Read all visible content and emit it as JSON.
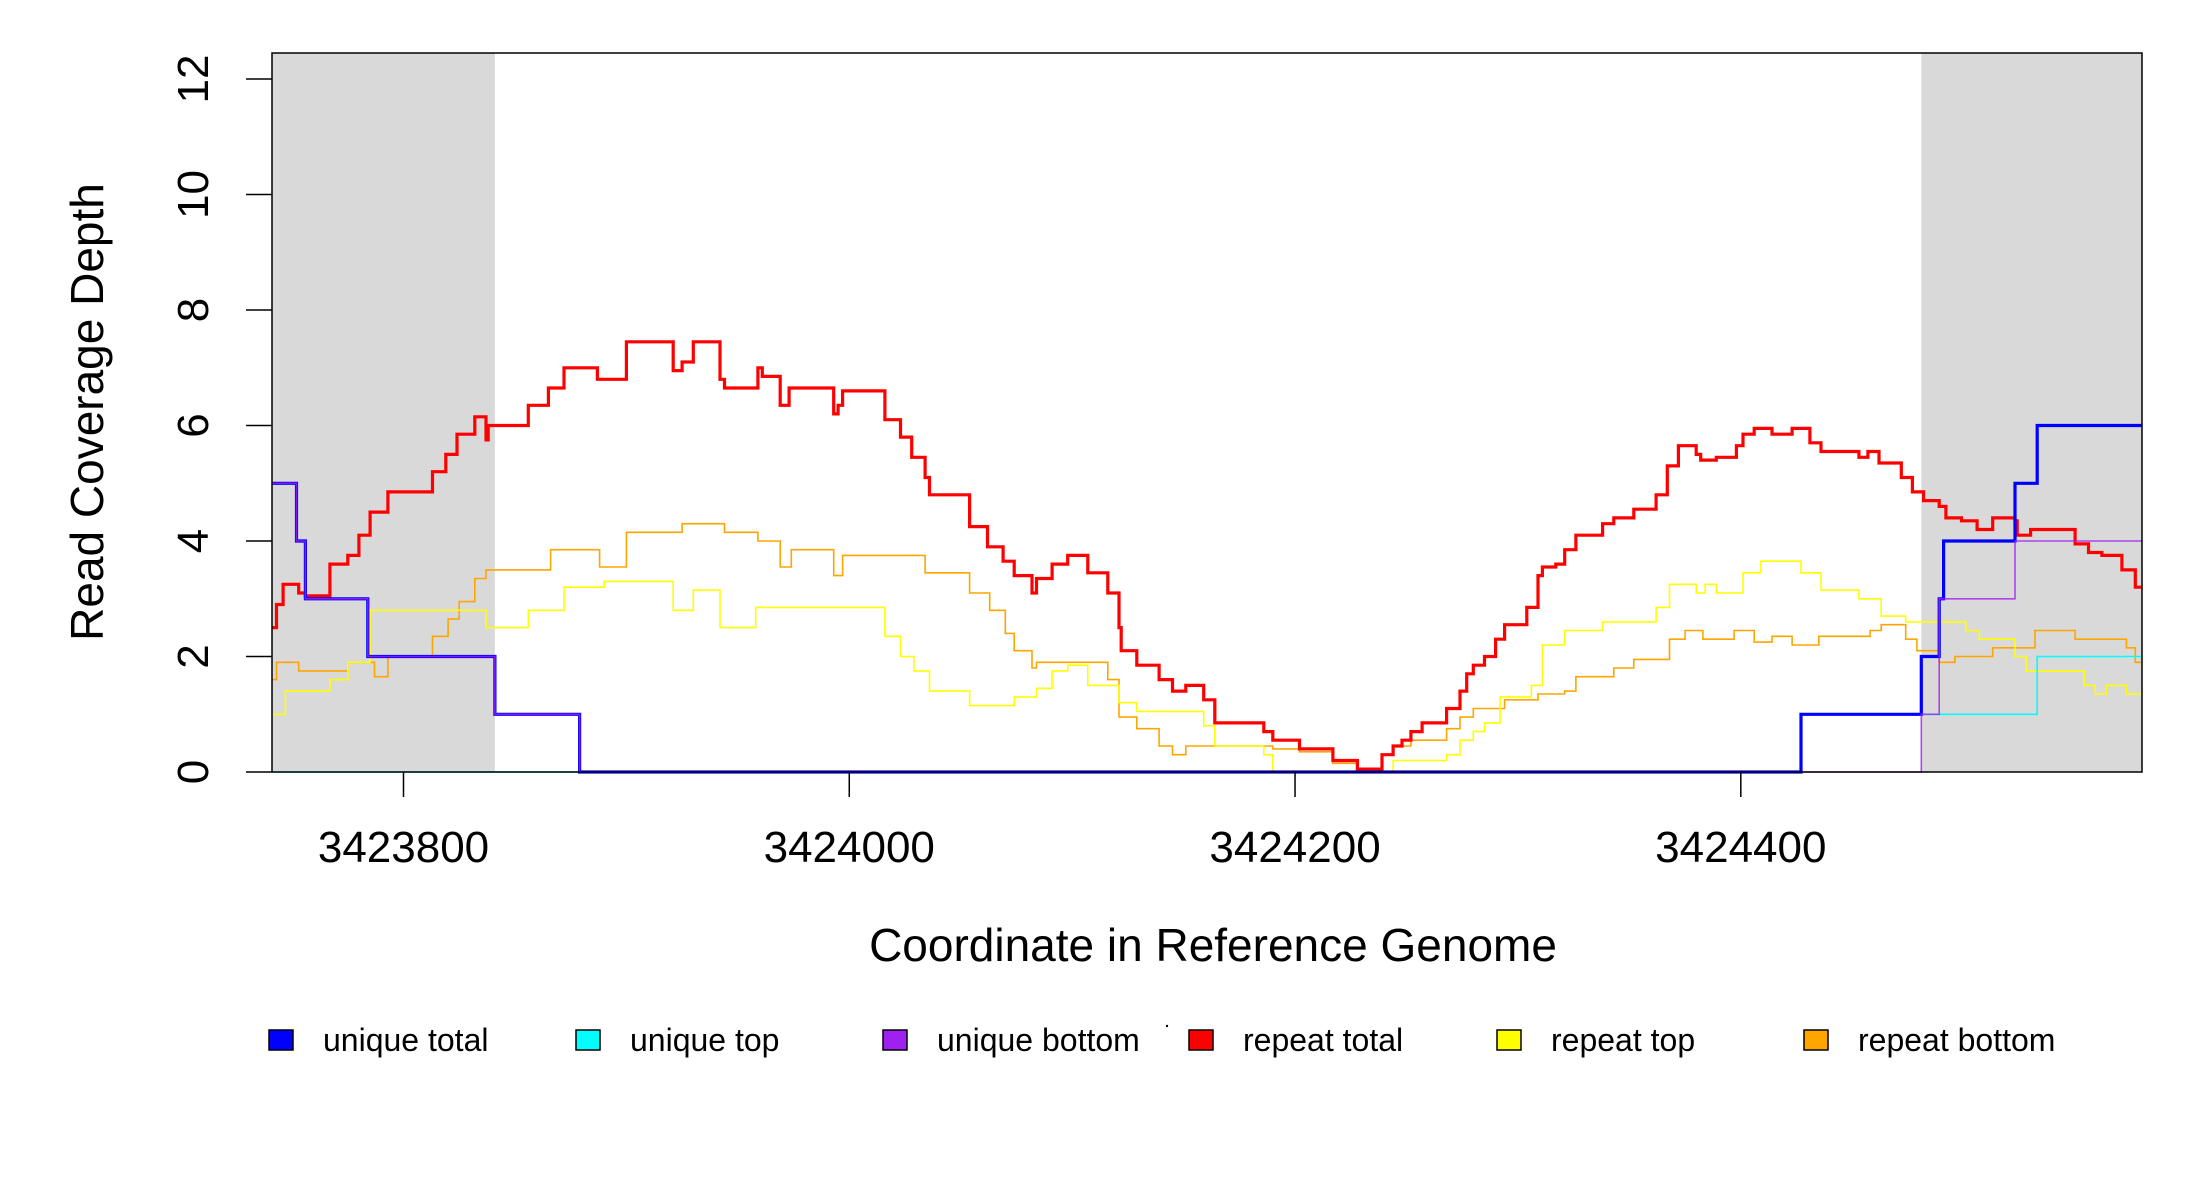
{
  "chart_data": {
    "type": "line",
    "step": true,
    "title": "",
    "xlabel": "Coordinate in Reference Genome",
    "ylabel": "Read Coverage Depth",
    "xlim": [
      3423741,
      3424580
    ],
    "ylim": [
      0,
      12
    ],
    "x_ticks": [
      3423800,
      3424000,
      3424200,
      3424400
    ],
    "x_tick_labels": [
      "3423800",
      "3424000",
      "3424200",
      "3424400"
    ],
    "y_ticks": [
      0,
      2,
      4,
      6,
      8,
      10,
      12
    ],
    "y_tick_labels": [
      "0",
      "2",
      "4",
      "6",
      "8",
      "10",
      "12"
    ],
    "grid": false,
    "legend_placement": "bottom",
    "shaded_regions": [
      {
        "from": 3423741,
        "to": 3423841,
        "color": "#d9d9d9"
      },
      {
        "from": 3424481,
        "to": 3424580,
        "color": "#d9d9d9"
      }
    ],
    "series": [
      {
        "name": "repeat bottom",
        "color": "#ffa500",
        "width": 1.6,
        "points": [
          [
            3423741,
            1.6
          ],
          [
            3423743,
            1.9
          ],
          [
            3423753,
            1.75
          ],
          [
            3423775,
            1.9
          ],
          [
            3423787,
            1.65
          ],
          [
            3423793,
            2.0
          ],
          [
            3423813,
            2.35
          ],
          [
            3423820,
            2.65
          ],
          [
            3423825,
            2.95
          ],
          [
            3423832,
            3.35
          ],
          [
            3423837,
            3.5
          ],
          [
            3423866,
            3.85
          ],
          [
            3423888,
            3.55
          ],
          [
            3423900,
            4.15
          ],
          [
            3423925,
            4.3
          ],
          [
            3423944,
            4.15
          ],
          [
            3423959,
            4.0
          ],
          [
            3423969,
            3.55
          ],
          [
            3423974,
            3.85
          ],
          [
            3423993,
            3.4
          ],
          [
            3423997,
            3.75
          ],
          [
            3424034,
            3.45
          ],
          [
            3424054,
            3.1
          ],
          [
            3424063,
            2.8
          ],
          [
            3424070,
            2.4
          ],
          [
            3424074,
            2.1
          ],
          [
            3424082,
            1.8
          ],
          [
            3424084,
            1.9
          ],
          [
            3424116,
            1.6
          ],
          [
            3424121,
            0.95
          ],
          [
            3424129,
            0.75
          ],
          [
            3424139,
            0.45
          ],
          [
            3424145,
            0.3
          ],
          [
            3424151,
            0.45
          ],
          [
            3424190,
            0.4
          ],
          [
            3424202,
            0.35
          ],
          [
            3424217,
            0.15
          ],
          [
            3424228,
            0.0
          ],
          [
            3424239,
            0.3
          ],
          [
            3424244,
            0.45
          ],
          [
            3424252,
            0.55
          ],
          [
            3424268,
            0.75
          ],
          [
            3424274,
            0.95
          ],
          [
            3424280,
            1.1
          ],
          [
            3424294,
            1.25
          ],
          [
            3424309,
            1.35
          ],
          [
            3424321,
            1.4
          ],
          [
            3424326,
            1.65
          ],
          [
            3424343,
            1.8
          ],
          [
            3424352,
            1.95
          ],
          [
            3424368,
            2.3
          ],
          [
            3424375,
            2.45
          ],
          [
            3424383,
            2.3
          ],
          [
            3424397,
            2.45
          ],
          [
            3424406,
            2.25
          ],
          [
            3424414,
            2.35
          ],
          [
            3424423,
            2.2
          ],
          [
            3424435,
            2.35
          ],
          [
            3424458,
            2.45
          ],
          [
            3424463,
            2.55
          ],
          [
            3424474,
            2.3
          ],
          [
            3424479,
            2.1
          ],
          [
            3424489,
            1.9
          ],
          [
            3424496,
            2.0
          ],
          [
            3424513,
            2.15
          ],
          [
            3424532,
            2.45
          ],
          [
            3424550,
            2.3
          ],
          [
            3424573,
            2.15
          ],
          [
            3424577,
            1.9
          ],
          [
            3424580,
            1.9
          ]
        ]
      },
      {
        "name": "repeat top",
        "color": "#ffff00",
        "width": 1.6,
        "points": [
          [
            3423741,
            1.0
          ],
          [
            3423747,
            1.4
          ],
          [
            3423767,
            1.6
          ],
          [
            3423775,
            1.9
          ],
          [
            3423785,
            2.8
          ],
          [
            3423837,
            2.5
          ],
          [
            3423856,
            2.8
          ],
          [
            3423872,
            3.2
          ],
          [
            3423890,
            3.3
          ],
          [
            3423921,
            2.8
          ],
          [
            3423930,
            3.15
          ],
          [
            3423942,
            2.5
          ],
          [
            3423958,
            2.85
          ],
          [
            3424016,
            2.35
          ],
          [
            3424023,
            2.0
          ],
          [
            3424029,
            1.75
          ],
          [
            3424036,
            1.4
          ],
          [
            3424054,
            1.15
          ],
          [
            3424074,
            1.3
          ],
          [
            3424084,
            1.45
          ],
          [
            3424091,
            1.75
          ],
          [
            3424098,
            1.85
          ],
          [
            3424107,
            1.5
          ],
          [
            3424121,
            1.2
          ],
          [
            3424129,
            1.05
          ],
          [
            3424159,
            0.8
          ],
          [
            3424164,
            0.45
          ],
          [
            3424186,
            0.3
          ],
          [
            3424190,
            0.0
          ],
          [
            3424244,
            0.2
          ],
          [
            3424268,
            0.3
          ],
          [
            3424274,
            0.55
          ],
          [
            3424280,
            0.7
          ],
          [
            3424285,
            0.85
          ],
          [
            3424292,
            1.3
          ],
          [
            3424306,
            1.5
          ],
          [
            3424311,
            2.2
          ],
          [
            3424321,
            2.45
          ],
          [
            3424338,
            2.6
          ],
          [
            3424362,
            2.85
          ],
          [
            3424368,
            3.25
          ],
          [
            3424380,
            3.1
          ],
          [
            3424384,
            3.25
          ],
          [
            3424389,
            3.1
          ],
          [
            3424401,
            3.45
          ],
          [
            3424409,
            3.65
          ],
          [
            3424427,
            3.45
          ],
          [
            3424436,
            3.15
          ],
          [
            3424453,
            3.0
          ],
          [
            3424463,
            2.7
          ],
          [
            3424474,
            2.6
          ],
          [
            3424501,
            2.45
          ],
          [
            3424507,
            2.3
          ],
          [
            3424523,
            2.0
          ],
          [
            3424528,
            1.75
          ],
          [
            3424554,
            1.5
          ],
          [
            3424559,
            1.35
          ],
          [
            3424564,
            1.5
          ],
          [
            3424573,
            1.35
          ],
          [
            3424580,
            1.35
          ]
        ]
      },
      {
        "name": "repeat total",
        "color": "#ff0000",
        "width": 3.2,
        "points": [
          [
            3423741,
            2.5
          ],
          [
            3423743,
            2.9
          ],
          [
            3423746,
            3.25
          ],
          [
            3423753,
            3.1
          ],
          [
            3423756,
            3.05
          ],
          [
            3423767,
            3.6
          ],
          [
            3423775,
            3.75
          ],
          [
            3423780,
            4.1
          ],
          [
            3423785,
            4.5
          ],
          [
            3423793,
            4.85
          ],
          [
            3423813,
            5.2
          ],
          [
            3423819,
            5.5
          ],
          [
            3423824,
            5.85
          ],
          [
            3423832,
            6.15
          ],
          [
            3423837,
            5.75
          ],
          [
            3423838,
            6.0
          ],
          [
            3423856,
            6.35
          ],
          [
            3423865,
            6.65
          ],
          [
            3423872,
            7.0
          ],
          [
            3423887,
            6.8
          ],
          [
            3423900,
            7.45
          ],
          [
            3423921,
            6.95
          ],
          [
            3423925,
            7.1
          ],
          [
            3423930,
            7.45
          ],
          [
            3423942,
            6.8
          ],
          [
            3423944,
            6.65
          ],
          [
            3423959,
            7.0
          ],
          [
            3423961,
            6.85
          ],
          [
            3423969,
            6.35
          ],
          [
            3423973,
            6.65
          ],
          [
            3423993,
            6.2
          ],
          [
            3423995,
            6.35
          ],
          [
            3423997,
            6.6
          ],
          [
            3424016,
            6.1
          ],
          [
            3424023,
            5.8
          ],
          [
            3424028,
            5.45
          ],
          [
            3424034,
            5.1
          ],
          [
            3424036,
            4.8
          ],
          [
            3424054,
            4.25
          ],
          [
            3424062,
            3.9
          ],
          [
            3424069,
            3.65
          ],
          [
            3424074,
            3.4
          ],
          [
            3424082,
            3.1
          ],
          [
            3424084,
            3.35
          ],
          [
            3424091,
            3.6
          ],
          [
            3424098,
            3.75
          ],
          [
            3424107,
            3.45
          ],
          [
            3424116,
            3.1
          ],
          [
            3424121,
            2.5
          ],
          [
            3424122,
            2.1
          ],
          [
            3424129,
            1.85
          ],
          [
            3424139,
            1.6
          ],
          [
            3424145,
            1.4
          ],
          [
            3424151,
            1.5
          ],
          [
            3424159,
            1.25
          ],
          [
            3424164,
            0.85
          ],
          [
            3424186,
            0.7
          ],
          [
            3424190,
            0.55
          ],
          [
            3424202,
            0.4
          ],
          [
            3424217,
            0.2
          ],
          [
            3424228,
            0.05
          ],
          [
            3424239,
            0.3
          ],
          [
            3424244,
            0.45
          ],
          [
            3424248,
            0.55
          ],
          [
            3424252,
            0.7
          ],
          [
            3424257,
            0.85
          ],
          [
            3424268,
            1.1
          ],
          [
            3424274,
            1.4
          ],
          [
            3424277,
            1.7
          ],
          [
            3424280,
            1.85
          ],
          [
            3424285,
            2.0
          ],
          [
            3424290,
            2.3
          ],
          [
            3424294,
            2.55
          ],
          [
            3424304,
            2.85
          ],
          [
            3424309,
            3.4
          ],
          [
            3424311,
            3.55
          ],
          [
            3424317,
            3.6
          ],
          [
            3424321,
            3.85
          ],
          [
            3424326,
            4.1
          ],
          [
            3424338,
            4.3
          ],
          [
            3424343,
            4.4
          ],
          [
            3424352,
            4.55
          ],
          [
            3424362,
            4.8
          ],
          [
            3424367,
            5.3
          ],
          [
            3424372,
            5.65
          ],
          [
            3424380,
            5.5
          ],
          [
            3424382,
            5.4
          ],
          [
            3424389,
            5.45
          ],
          [
            3424398,
            5.65
          ],
          [
            3424401,
            5.85
          ],
          [
            3424406,
            5.95
          ],
          [
            3424414,
            5.85
          ],
          [
            3424423,
            5.95
          ],
          [
            3424431,
            5.7
          ],
          [
            3424436,
            5.55
          ],
          [
            3424453,
            5.45
          ],
          [
            3424457,
            5.55
          ],
          [
            3424462,
            5.35
          ],
          [
            3424472,
            5.1
          ],
          [
            3424477,
            4.85
          ],
          [
            3424482,
            4.7
          ],
          [
            3424489,
            4.6
          ],
          [
            3424492,
            4.4
          ],
          [
            3424499,
            4.35
          ],
          [
            3424506,
            4.2
          ],
          [
            3424513,
            4.4
          ],
          [
            3424523,
            4.35
          ],
          [
            3424524,
            4.1
          ],
          [
            3424530,
            4.2
          ],
          [
            3424550,
            3.95
          ],
          [
            3424556,
            3.8
          ],
          [
            3424562,
            3.75
          ],
          [
            3424571,
            3.5
          ],
          [
            3424577,
            3.2
          ],
          [
            3424580,
            3.2
          ]
        ]
      },
      {
        "name": "unique top",
        "color": "#00ffff",
        "width": 1.6,
        "points": [
          [
            3423741,
            0
          ],
          [
            3424427,
            1
          ],
          [
            3424533,
            2
          ],
          [
            3424580,
            2
          ]
        ]
      },
      {
        "name": "unique total",
        "color": "#0000ff",
        "width": 3.2,
        "points": [
          [
            3423741,
            5
          ],
          [
            3423752,
            4
          ],
          [
            3423756,
            3
          ],
          [
            3423784,
            2
          ],
          [
            3423841,
            1
          ],
          [
            3423879,
            0
          ],
          [
            3424427,
            1
          ],
          [
            3424481,
            2
          ],
          [
            3424489,
            3
          ],
          [
            3424491,
            4
          ],
          [
            3424523,
            5
          ],
          [
            3424533,
            6
          ],
          [
            3424580,
            6
          ]
        ]
      },
      {
        "name": "unique bottom",
        "color": "#a020f0",
        "width": 1.6,
        "points": [
          [
            3423741,
            5
          ],
          [
            3423752,
            4
          ],
          [
            3423756,
            3
          ],
          [
            3423784,
            2
          ],
          [
            3423841,
            1
          ],
          [
            3423879,
            0
          ],
          [
            3424481,
            1
          ],
          [
            3424489,
            3
          ],
          [
            3424523,
            4
          ],
          [
            3424580,
            4
          ]
        ]
      }
    ],
    "legend": [
      {
        "label": "unique total",
        "color": "#0000ff"
      },
      {
        "label": "unique top",
        "color": "#00ffff"
      },
      {
        "label": "unique bottom",
        "color": "#a020f0"
      },
      {
        "label": "repeat total",
        "color": "#ff0000"
      },
      {
        "label": "repeat top",
        "color": "#ffff00"
      },
      {
        "label": "repeat bottom",
        "color": "#ffa500"
      }
    ]
  }
}
